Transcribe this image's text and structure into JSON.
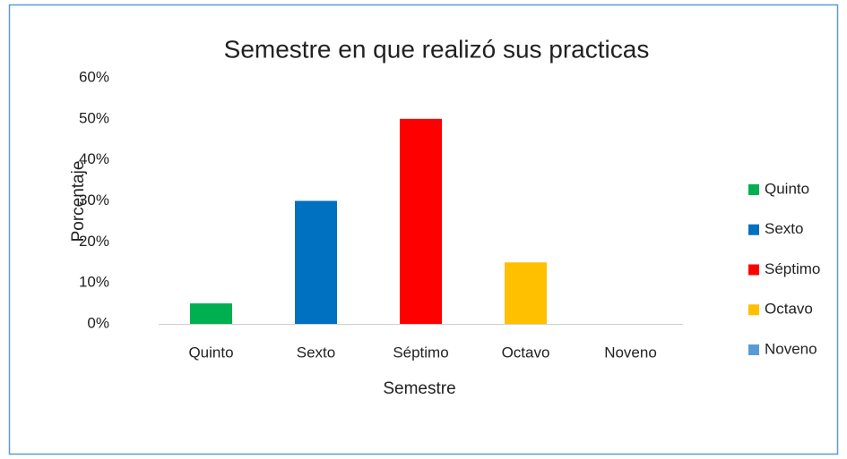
{
  "chart_data": {
    "type": "bar",
    "title": "Semestre en que realizó sus practicas",
    "x_label": "Semestre",
    "y_label": "Porcentaje",
    "categories": [
      "Quinto",
      "Sexto",
      "Séptimo",
      "Octavo",
      "Noveno"
    ],
    "values": [
      5,
      30,
      50,
      15,
      0
    ],
    "colors": [
      "#00b050",
      "#0070c0",
      "#ff0000",
      "#ffc000",
      "#5b9bd5"
    ],
    "ylim": [
      0,
      60
    ],
    "yticks": [
      {
        "value": 0,
        "label": "0%"
      },
      {
        "value": 10,
        "label": "10%"
      },
      {
        "value": 20,
        "label": "20%"
      },
      {
        "value": 30,
        "label": "30%"
      },
      {
        "value": 40,
        "label": "40%"
      },
      {
        "value": 50,
        "label": "50%"
      },
      {
        "value": 60,
        "label": "60%"
      }
    ],
    "grid": false,
    "legend": "right"
  }
}
